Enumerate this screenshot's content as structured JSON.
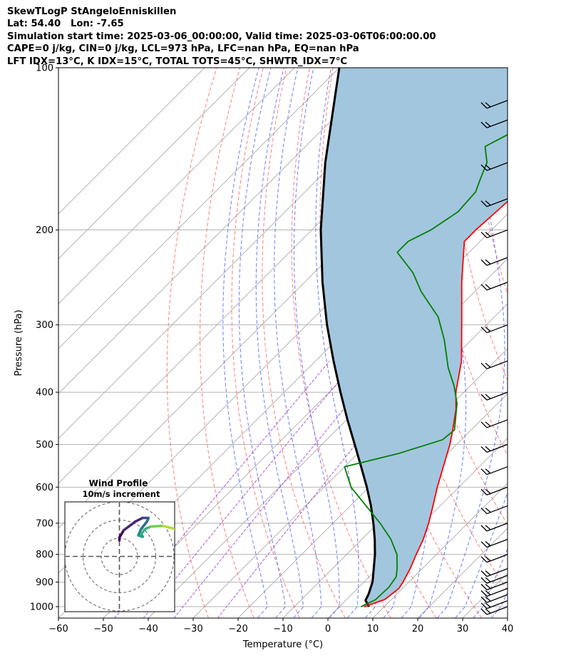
{
  "header": {
    "lines": [
      "SkewTLogP StAngeloEnniskillen",
      "Lat: 54.40   Lon: -7.65",
      "Simulation start time: 2025-03-06_00:00:00, Valid time: 2025-03-06T06:00:00.00",
      "CAPE=0 j/kg, CIN=0 j/kg, LCL=973 hPa, LFC=nan hPa, EQ=nan hPa",
      "LFT IDX=13°C, K IDX=15°C, TOTAL TOTS=45°C, SHWTR_IDX=7°C"
    ]
  },
  "chart_data": [
    {
      "type": "line",
      "subtype": "skew-t log-p sounding",
      "xlabel": "Temperature (°C)",
      "ylabel": "Pressure (hPa)",
      "xlim": [
        -60,
        40
      ],
      "ylim": [
        1050,
        100
      ],
      "y_scale": "log",
      "skew": "45 degrees",
      "x_ticks": [
        -60,
        -50,
        -40,
        -30,
        -20,
        -10,
        0,
        10,
        20,
        30,
        40
      ],
      "x_tick_labels": [
        "−60",
        "−50",
        "−40",
        "−30",
        "−20",
        "−10",
        "0",
        "10",
        "20",
        "30",
        "40"
      ],
      "y_ticks": [
        1000,
        900,
        800,
        700,
        600,
        500,
        400,
        300,
        200,
        100
      ],
      "y_tick_labels": [
        "1000",
        "900",
        "800",
        "700",
        "600",
        "500",
        "400",
        "300",
        "200",
        "100"
      ],
      "grid": true,
      "colors": {
        "temperature": "#ff0000",
        "dewpoint": "#008000",
        "parcel": "#000000",
        "cape_fill": "#a3c6df",
        "dry_adiabats": "#ff6666",
        "moist_adiabats": "#5566ff",
        "mixing_ratio": "#9932cc",
        "isotherms": "#aaaaaa"
      },
      "series": [],
      "profiles": {
        "temperature": [
          {
            "p": 1000,
            "t": 5.5
          },
          {
            "p": 970,
            "t": 8.5
          },
          {
            "p": 925,
            "t": 9.2
          },
          {
            "p": 900,
            "t": 8.7
          },
          {
            "p": 850,
            "t": 7.3
          },
          {
            "p": 800,
            "t": 5.5
          },
          {
            "p": 750,
            "t": 3.7
          },
          {
            "p": 700,
            "t": 1.3
          },
          {
            "p": 650,
            "t": -1.6
          },
          {
            "p": 600,
            "t": -4.8
          },
          {
            "p": 550,
            "t": -8.0
          },
          {
            "p": 500,
            "t": -11.5
          },
          {
            "p": 470,
            "t": -14.1
          },
          {
            "p": 430,
            "t": -18.0
          },
          {
            "p": 400,
            "t": -21.8
          },
          {
            "p": 350,
            "t": -27.5
          },
          {
            "p": 300,
            "t": -35.5
          },
          {
            "p": 250,
            "t": -45.0
          },
          {
            "p": 210,
            "t": -53.5
          },
          {
            "p": 200,
            "t": -53.5
          },
          {
            "p": 185,
            "t": -53.0
          },
          {
            "p": 170,
            "t": -52.5
          },
          {
            "p": 160,
            "t": -52.0
          },
          {
            "p": 140,
            "t": -51.0
          },
          {
            "p": 120,
            "t": -50.0
          },
          {
            "p": 110,
            "t": -49.0
          },
          {
            "p": 105,
            "t": -49.0
          },
          {
            "p": 100,
            "t": -49.5
          }
        ],
        "dewpoint": [
          {
            "p": 1000,
            "t": 4.8
          },
          {
            "p": 970,
            "t": 6.5
          },
          {
            "p": 920,
            "t": 6.7
          },
          {
            "p": 880,
            "t": 6.0
          },
          {
            "p": 850,
            "t": 4.4
          },
          {
            "p": 800,
            "t": 1.2
          },
          {
            "p": 750,
            "t": -3.5
          },
          {
            "p": 700,
            "t": -9.5
          },
          {
            "p": 650,
            "t": -16.5
          },
          {
            "p": 600,
            "t": -24.0
          },
          {
            "p": 550,
            "t": -30.0
          },
          {
            "p": 520,
            "t": -21.0
          },
          {
            "p": 490,
            "t": -14.2
          },
          {
            "p": 470,
            "t": -13.7
          },
          {
            "p": 420,
            "t": -19.0
          },
          {
            "p": 390,
            "t": -23.5
          },
          {
            "p": 360,
            "t": -29.0
          },
          {
            "p": 320,
            "t": -36.0
          },
          {
            "p": 290,
            "t": -42.5
          },
          {
            "p": 260,
            "t": -52.0
          },
          {
            "p": 240,
            "t": -58.0
          },
          {
            "p": 220,
            "t": -66.0
          },
          {
            "p": 210,
            "t": -66.0
          },
          {
            "p": 200,
            "t": -63.5
          },
          {
            "p": 185,
            "t": -61.5
          },
          {
            "p": 170,
            "t": -62.0
          },
          {
            "p": 160,
            "t": -64.0
          },
          {
            "p": 150,
            "t": -66.0
          },
          {
            "p": 140,
            "t": -70.0
          },
          {
            "p": 130,
            "t": -66.5
          },
          {
            "p": 120,
            "t": -66.0
          },
          {
            "p": 110,
            "t": -66.5
          },
          {
            "p": 100,
            "t": -68.0
          }
        ],
        "parcel": [
          {
            "p": 1000,
            "t": 6.6
          },
          {
            "p": 973,
            "t": 4.4
          },
          {
            "p": 950,
            "t": 3.8
          },
          {
            "p": 900,
            "t": 1.9
          },
          {
            "p": 850,
            "t": -0.8
          },
          {
            "p": 800,
            "t": -3.7
          },
          {
            "p": 750,
            "t": -7.1
          },
          {
            "p": 700,
            "t": -11.0
          },
          {
            "p": 650,
            "t": -15.4
          },
          {
            "p": 600,
            "t": -20.5
          },
          {
            "p": 550,
            "t": -26.3
          },
          {
            "p": 500,
            "t": -32.7
          },
          {
            "p": 450,
            "t": -39.8
          },
          {
            "p": 400,
            "t": -47.5
          },
          {
            "p": 350,
            "t": -56.0
          },
          {
            "p": 300,
            "t": -65.5
          },
          {
            "p": 250,
            "t": -76.0
          },
          {
            "p": 200,
            "t": -88.0
          },
          {
            "p": 150,
            "t": -102.0
          },
          {
            "p": 100,
            "t": -120.0
          }
        ]
      },
      "wind_barbs_hPa": [
        1000,
        975,
        950,
        925,
        900,
        875,
        850,
        800,
        750,
        700,
        650,
        600,
        550,
        500,
        450,
        400,
        350,
        300,
        250,
        225,
        200,
        175,
        150,
        125,
        115
      ]
    },
    {
      "type": "scatter",
      "subtype": "wind hodograph",
      "title": "Wind Profile",
      "subtitle": "10m/s increment",
      "colormap": "viridis",
      "rings": 3,
      "points": [
        {
          "u": 0,
          "v": 2.2
        },
        {
          "u": 0,
          "v": 2.6
        },
        {
          "u": 0.6,
          "v": 3.6
        },
        {
          "u": 2.2,
          "v": 4.8
        },
        {
          "u": 3.2,
          "v": 5.3
        },
        {
          "u": 4.0,
          "v": 5.3
        },
        {
          "u": 3.8,
          "v": 4.8
        },
        {
          "u": 3.0,
          "v": 3.8
        },
        {
          "u": 2.6,
          "v": 2.9
        },
        {
          "u": 3.2,
          "v": 2.7
        },
        {
          "u": 3.0,
          "v": 3.1
        },
        {
          "u": 3.6,
          "v": 3.8
        },
        {
          "u": 4.3,
          "v": 4.1
        },
        {
          "u": 6.0,
          "v": 4.2
        },
        {
          "u": 7.6,
          "v": 3.8
        },
        {
          "u": 8.2,
          "v": 2.9
        },
        {
          "u": 8.6,
          "v": 2.2
        }
      ]
    }
  ]
}
